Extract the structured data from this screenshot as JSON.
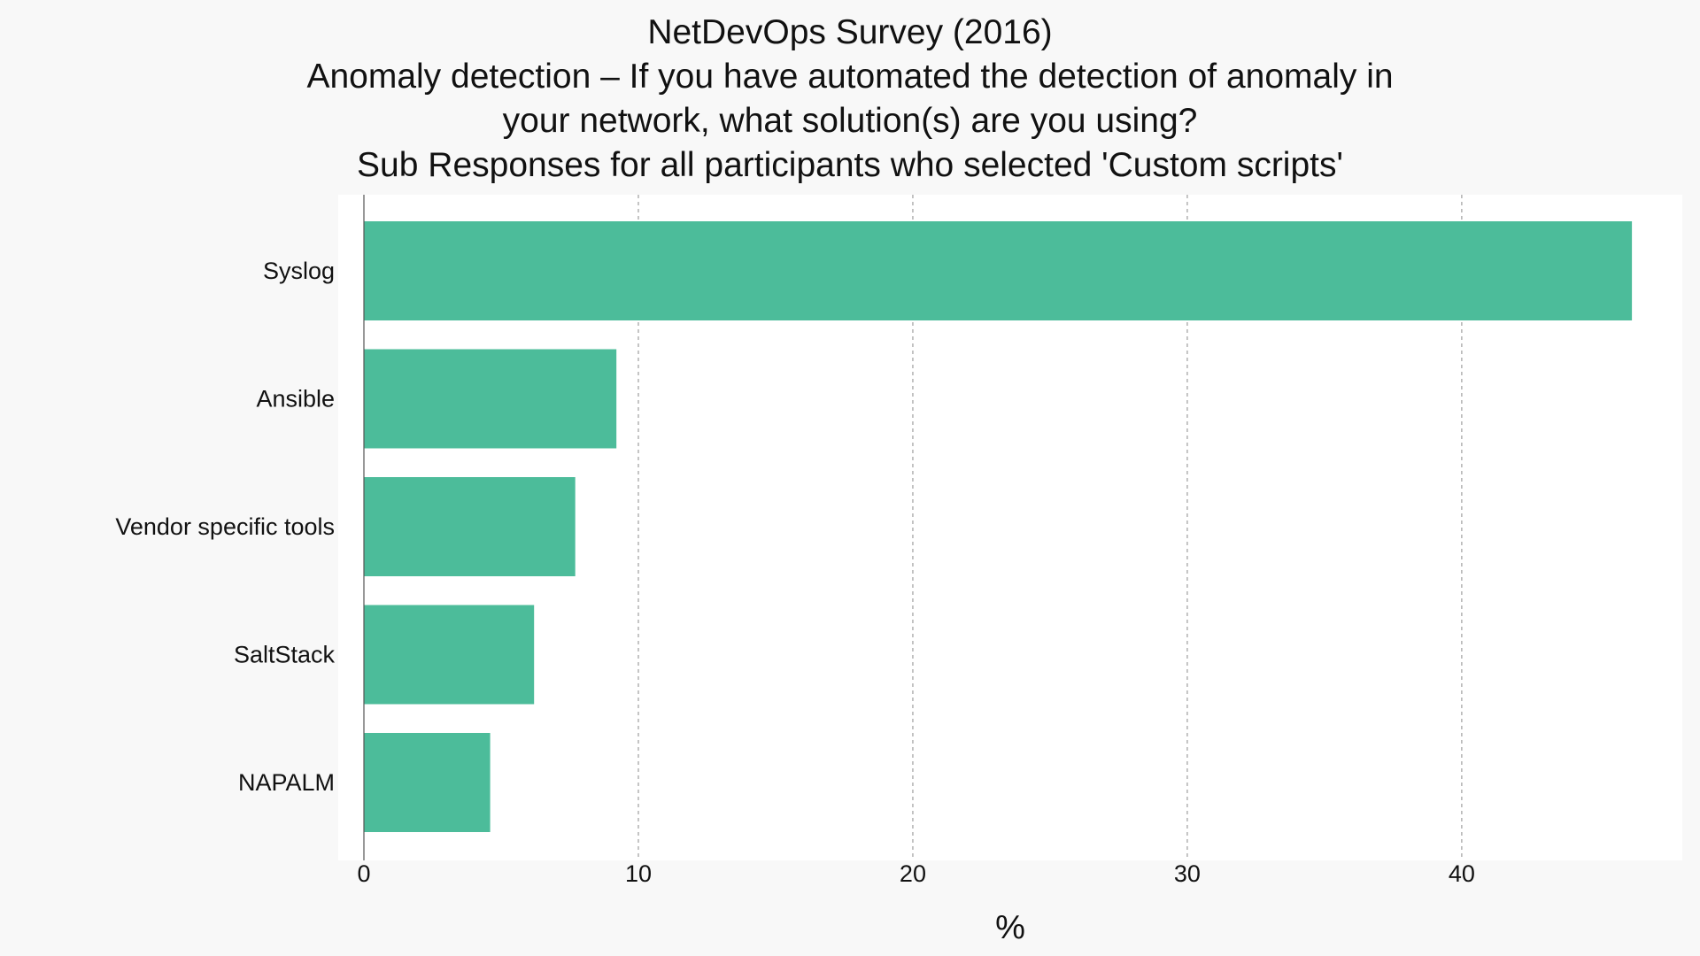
{
  "chart_data": {
    "type": "bar",
    "orientation": "horizontal",
    "title": [
      "NetDevOps Survey (2016)",
      "Anomaly detection – If you have automated the detection of anomaly in",
      "your network, what solution(s) are you using?",
      "Sub Responses for all participants who selected 'Custom scripts'"
    ],
    "categories": [
      "Syslog",
      "Ansible",
      "Vendor specific tools",
      "SaltStack",
      "NAPALM"
    ],
    "values": [
      46.2,
      9.2,
      7.7,
      6.2,
      4.6
    ],
    "xlabel": "%",
    "ylabel": "",
    "xlim": [
      0,
      47.1
    ],
    "xticks": [
      0,
      10,
      20,
      30,
      40
    ],
    "grid": true,
    "bar_color": "#4cbc9a",
    "grid_color": "#8a8a8a",
    "plot_background": "#ffffff",
    "page_background": "#f8f8f8"
  }
}
